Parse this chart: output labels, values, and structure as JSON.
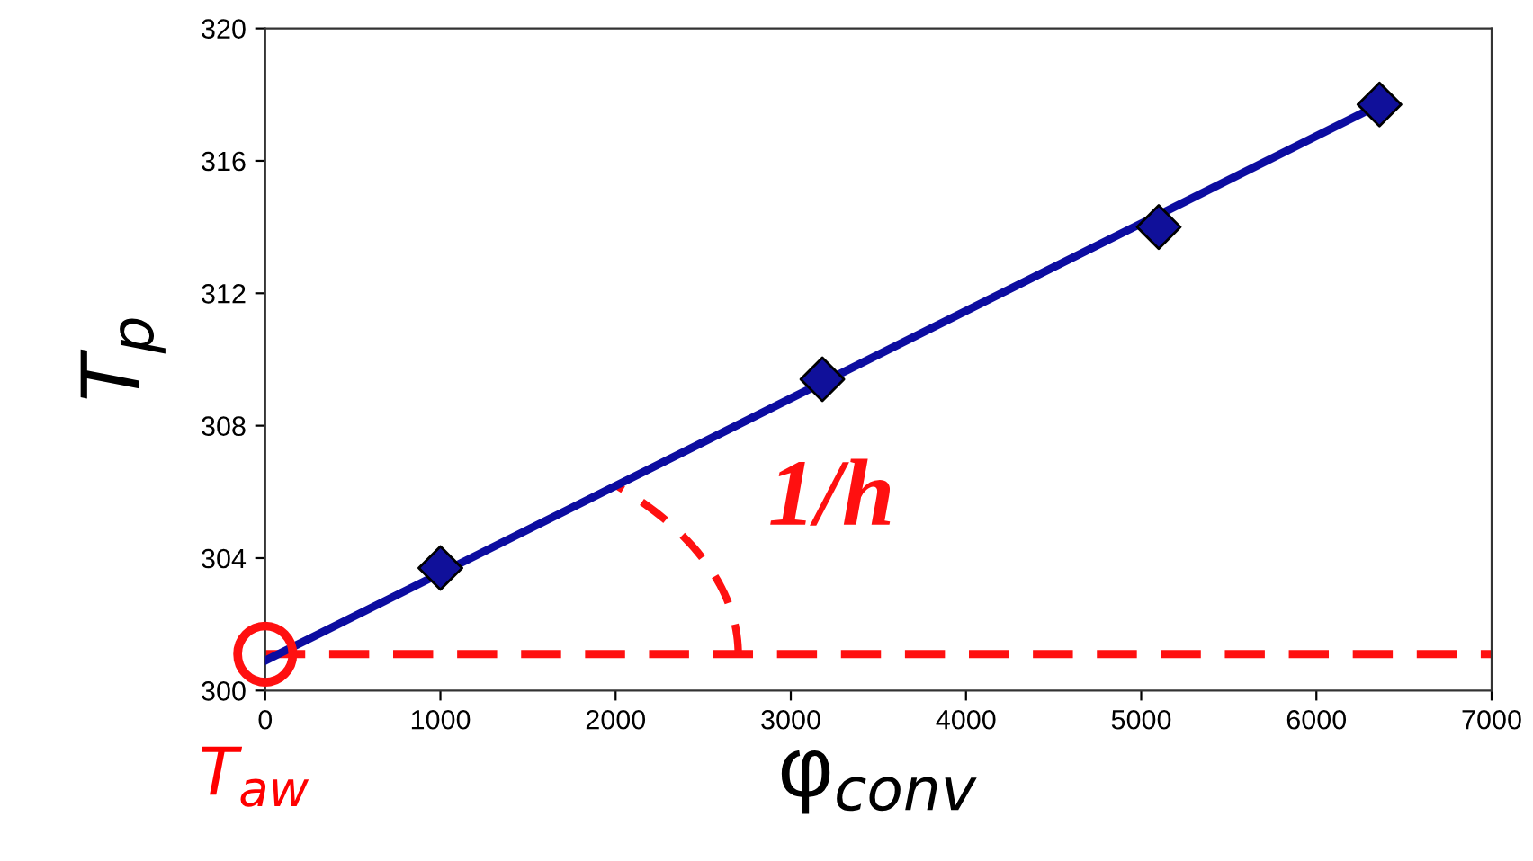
{
  "chart_data": {
    "type": "scatter",
    "xlabel": "φ$_{conv}$",
    "ylabel": "T$_{p}$",
    "xlim": [
      0,
      7000
    ],
    "xticks": [
      0,
      1000,
      2000,
      3000,
      4000,
      5000,
      6000,
      7000
    ],
    "ylim": [
      300,
      320
    ],
    "yticks": [
      300,
      304,
      308,
      312,
      316,
      320
    ],
    "grid": false,
    "legend": false,
    "series": [
      {
        "type": "line",
        "color": "#0c0ca0",
        "marker": "none",
        "line_style": "solid",
        "x": [
          0,
          6360
        ],
        "values": [
          300.9,
          317.7
        ]
      },
      {
        "color": "#10109a",
        "marker": "diamond",
        "x": [
          1000,
          3180,
          5100,
          6360
        ],
        "values": [
          303.7,
          309.4,
          314.0,
          317.7
        ]
      }
    ],
    "ref_lines": [
      {
        "axis": "y",
        "value": 301.1,
        "label": null,
        "color": "#ff1010",
        "line_style": "dashed"
      }
    ],
    "annotations": [
      "1/h",
      "T$_{aw}$"
    ]
  }
}
